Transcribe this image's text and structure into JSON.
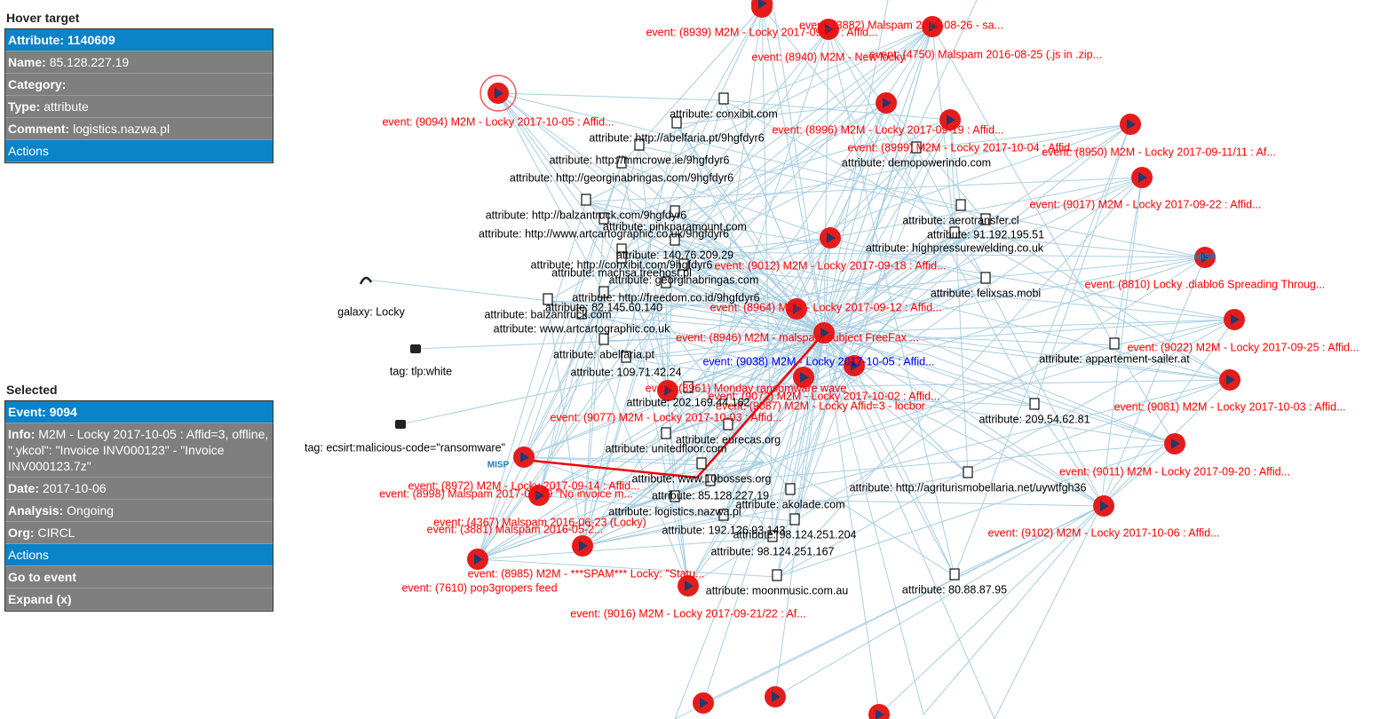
{
  "hover_target": {
    "title": "Hover target",
    "header": "Attribute: 1140609",
    "fields": [
      {
        "key": "Name:",
        "value": "85.128.227.19"
      },
      {
        "key": "Category:"
      },
      {
        "key": "Type:",
        "value": "attribute"
      },
      {
        "key": "Comment:",
        "value": "logistics.nazwa.pl"
      }
    ],
    "actions": "Actions"
  },
  "selected": {
    "title": "Selected",
    "header": "Event: 9094",
    "fields": [
      {
        "key": "Info:",
        "value": "M2M - Locky 2017-10-05 : Affid=3, offline, \".ykcol\": \"Invoice INV000123\" - \"Invoice INV000123.7z\""
      },
      {
        "key": "Date:",
        "value": "2017-10-06"
      },
      {
        "key": "Analysis:",
        "value": "Ongoing"
      },
      {
        "key": "Org:",
        "value": "CIRCL"
      }
    ],
    "actions": "Actions",
    "items": [
      "Go to event",
      "Expand (x)"
    ]
  },
  "graph": {
    "misp_logo": "MISP",
    "events": [
      "event: (9094) M2M - Locky 2017-10-05 : Affid...",
      "event: (8939) M2M - Locky 2017-09-05 : Affid...",
      "event: (3882) Malspam 2016-08-26 - sa...",
      "event: (8940) M2M - New locky",
      "event: (4750) Malspam 2016-08-25 (.js in .zip...",
      "event: (8996) M2M - Locky 2017-09-19 : Affid...",
      "event: (8999) M2M - Locky 2017-10-04 : Affid...",
      "event: (8950) M2M - Locky 2017-09-11/11 : Af...",
      "event: (9017) M2M - Locky 2017-09-22 : Affid...",
      "event: (9012) M2M - Locky 2017-09-18 : Affid...",
      "event: (8810) Locky .diablo6 Spreading Throug...",
      "event: (8964) M2M - Locky 2017-09-12 : Affid...",
      "event: (8946) M2M - malspam subject FreeFax ...",
      "event: (9038) M2M - Locky 2017-10-05 : Affid...",
      "event: (9022) M2M - Locky 2017-09-25 : Affid...",
      "event: (8961) Monday ransomware wave",
      "event: (9072) M2M - Locky 2017-10-02 : Affid...",
      "event: (9087) M2M - Locky Affid=3 - locbor",
      "event: (9081) M2M - Locky 2017-10-03 : Affid...",
      "event: (9077) M2M - Locky 2017-10-03 : Affid...",
      "event: (9011) M2M - Locky 2017-09-20 : Affid...",
      "event: (8972) M2M - Locky 2017-09-14 : Affid...",
      "event: (8998) Malspam 2017-09-19 \"No invoice m...",
      "event: (4367) Malspam 2016-06-23 (Locky)",
      "event: (3881) Malspam 2016-05-2...",
      "event: (9102) M2M - Locky 2017-10-06 : Affid...",
      "event: (8985) M2M - ***SPAM*** Locky: \"Statu...",
      "event: (7610) pop3gropers feed",
      "event: (9016) M2M - Locky 2017-09-21/22 : Af..."
    ],
    "attributes": [
      "attribute: conxibit.com",
      "attribute: http://abelfaria.pt/9hgfdyr6",
      "attribute: http://mmcrowe.ie/9hgfdyr6",
      "attribute: http://georginabringas.com/9hgfdyr6",
      "attribute: http://balzantruck.com/9hgfdyr6",
      "attribute: pinkparamount.com",
      "attribute: http://www.artcartographic.co.uk/9hgfdyr6",
      "attribute: 140.76.209.29",
      "attribute: http://conxibit.com/9hgfdyr6",
      "attribute: machsa.treehost.pl",
      "attribute: georginabringas.com",
      "attribute: http://freedom.co.id/9hgfdyr6",
      "attribute: 82.145.60.140",
      "attribute: balzantruck.com",
      "attribute: www.artcartographic.co.uk",
      "attribute: abelfaria.pt",
      "attribute: 109.71.42.24",
      "attribute: demopowerindo.com",
      "attribute: aerotransfer.cl",
      "attribute: 91.192.195.51",
      "attribute: highpressurewelding.co.uk",
      "attribute: felixsas.mobi",
      "attribute: appartement-sailer.at",
      "attribute: 209.54.62.81",
      "attribute: 202.169.44.162",
      "attribute: eurecas.org",
      "attribute: unitedfloor.com",
      "attribute: www.10bosses.org",
      "attribute: 85.128.227.19",
      "attribute: logistics.nazwa.pl",
      "attribute: akolade.com",
      "attribute: 192.126.93.143",
      "attribute: 98.124.251.204",
      "attribute: 98.124.251.167",
      "attribute: moonmusic.com.au",
      "attribute: 80.88.87.95",
      "attribute: http://agriturismobellaria.net/uywtfgh36"
    ],
    "tags": [
      "galaxy: Locky",
      "tag: tlp:white",
      "tag: ecsirt:malicious-code=\"ransomware\""
    ]
  }
}
